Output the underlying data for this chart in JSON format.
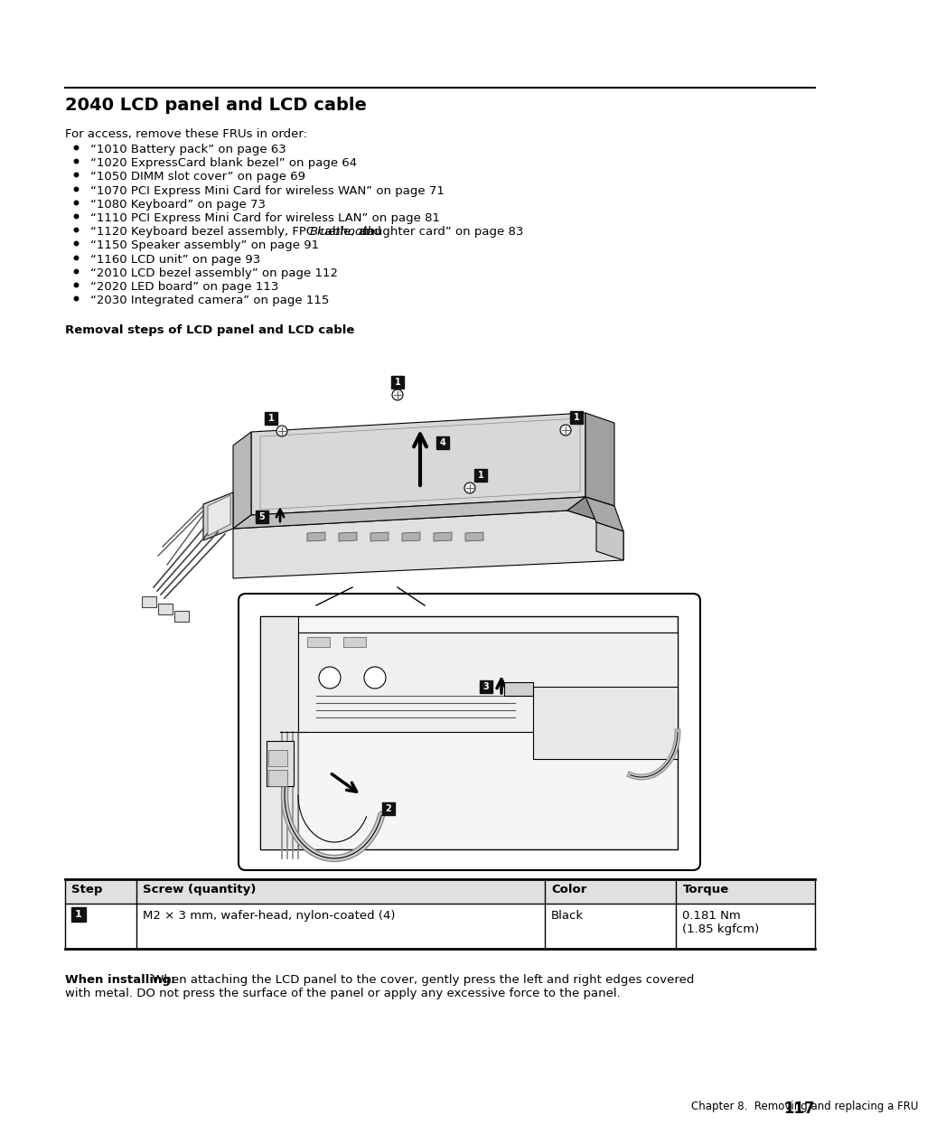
{
  "title": "2040 LCD panel and LCD cable",
  "intro_text": "For access, remove these FRUs in order:",
  "bullet_points": [
    "“1010 Battery pack” on page 63",
    "“1020 ExpressCard blank bezel” on page 64",
    "“1050 DIMM slot cover” on page 69",
    "“1070 PCI Express Mini Card for wireless WAN” on page 71",
    "“1080 Keyboard” on page 73",
    "“1110 PCI Express Mini Card for wireless LAN” on page 81",
    "“1120 Keyboard bezel assembly, FPC cable, and Bluethooth daughter card” on page 83",
    "“1150 Speaker assembly” on page 91",
    "“1160 LCD unit” on page 93",
    "“2010 LCD bezel assembly” on page 112",
    "“2020 LED board” on page 113",
    "“2030 Integrated camera” on page 115"
  ],
  "italic_word": "Bluethooth",
  "removal_steps_title": "Removal steps of LCD panel and LCD cable",
  "table_headers": [
    "Step",
    "Screw (quantity)",
    "Color",
    "Torque"
  ],
  "table_rows": [
    [
      "1",
      "M2 × 3 mm, wafer-head, nylon-coated (4)",
      "Black",
      "0.181 Nm\n(1.85 kgfcm)"
    ]
  ],
  "when_installing_bold": "When installing:",
  "when_installing_text": " When attaching the LCD panel to the cover, gently press the left and right edges covered with metal. DO not press the surface of the panel or apply any excessive force to the panel.",
  "footer_text": "Chapter 8.  Removing and replacing a FRU",
  "page_number": "117",
  "bg_color": "#ffffff",
  "text_color": "#000000"
}
